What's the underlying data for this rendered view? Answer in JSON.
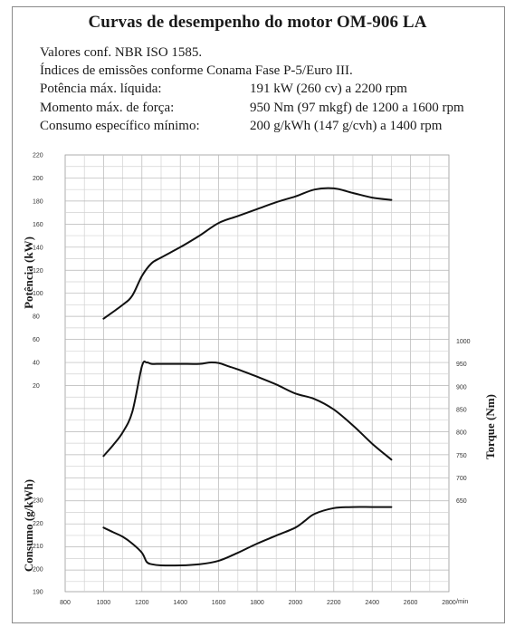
{
  "title": "Curvas de desempenho do motor OM-906 LA",
  "specs": [
    {
      "label": "Valores conf. NBR ISO 1585.",
      "value": ""
    },
    {
      "label": "Índices de emissões conforme Conama Fase P-5/Euro III.",
      "value": ""
    },
    {
      "label": "Potência máx. líquida:",
      "value": "191 kW (260 cv) a 2200 rpm"
    },
    {
      "label": "Momento máx. de força:",
      "value": "950 Nm (97 mkgf) de 1200 a 1600 rpm"
    },
    {
      "label": "Consumo específico mínimo:",
      "value": "200 g/kWh (147 g/cvh) a 1400 rpm"
    }
  ],
  "chart_data": {
    "type": "line",
    "xlabel": "/min",
    "x_ticks": [
      800,
      1000,
      1200,
      1400,
      1600,
      1800,
      2000,
      2200,
      2400,
      2600,
      2800
    ],
    "xlim": [
      800,
      2800
    ],
    "power": {
      "ylabel": "Potência (kW)",
      "ylim": [
        20,
        220
      ],
      "ticks": [
        20,
        40,
        60,
        80,
        100,
        120,
        140,
        160,
        180,
        200,
        220
      ],
      "x": [
        1000,
        1100,
        1150,
        1200,
        1250,
        1300,
        1400,
        1500,
        1600,
        1700,
        1800,
        1900,
        2000,
        2100,
        2200,
        2300,
        2400,
        2500
      ],
      "values": [
        78,
        90,
        98,
        115,
        126,
        131,
        140,
        150,
        161,
        167,
        173,
        179,
        184,
        190,
        191,
        187,
        183,
        181
      ]
    },
    "torque": {
      "ylabel": "Torque (Nm)",
      "ylim": [
        700,
        1000
      ],
      "ticks": [
        650,
        700,
        750,
        800,
        850,
        900,
        950,
        1000
      ],
      "x": [
        1000,
        1050,
        1100,
        1150,
        1200,
        1225,
        1250,
        1300,
        1400,
        1500,
        1550,
        1600,
        1650,
        1700,
        1800,
        1900,
        2000,
        2100,
        2200,
        2300,
        2400,
        2500
      ],
      "values": [
        748,
        772,
        800,
        845,
        945,
        953,
        950,
        950,
        950,
        950,
        953,
        952,
        945,
        938,
        922,
        905,
        885,
        873,
        850,
        815,
        775,
        740
      ]
    },
    "consumption": {
      "ylabel": "Consumo (g/kWh)",
      "ylim": [
        190,
        230
      ],
      "ticks": [
        190,
        200,
        210,
        220,
        230
      ],
      "x": [
        1000,
        1050,
        1100,
        1150,
        1200,
        1225,
        1250,
        1300,
        1400,
        1500,
        1600,
        1700,
        1800,
        1900,
        2000,
        2050,
        2100,
        2200,
        2300,
        2400,
        2500
      ],
      "values": [
        218,
        216,
        214,
        211,
        207,
        203,
        202,
        201.5,
        201.5,
        202,
        203.5,
        207,
        211,
        214.5,
        218,
        221,
        224,
        226.5,
        227,
        227,
        227
      ]
    }
  }
}
